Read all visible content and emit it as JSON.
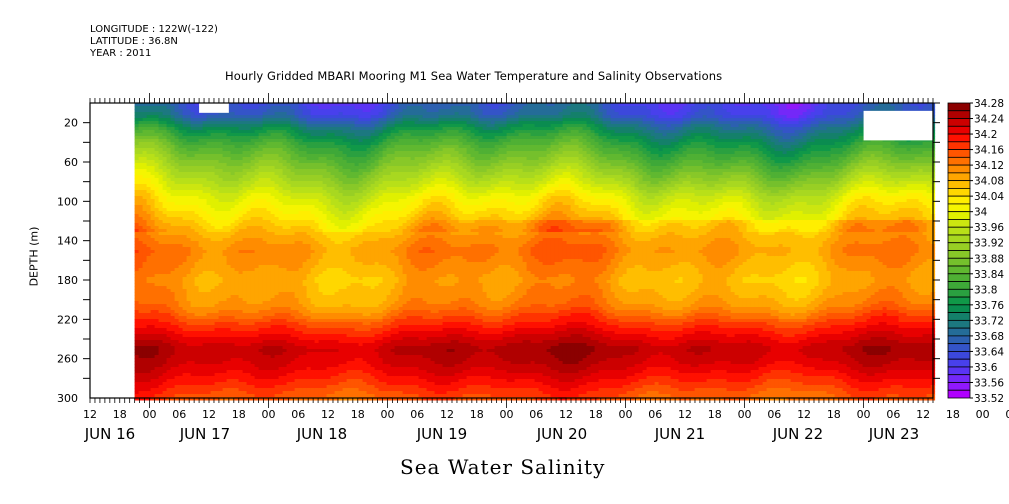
{
  "header": {
    "longitude": "LONGITUDE : 122W(-122)",
    "latitude": "LATITUDE : 36.8N",
    "year": "YEAR : 2011"
  },
  "chart_data": {
    "type": "heatmap",
    "title": "Hourly Gridded MBARI Mooring M1 Sea Water Temperature and Salinity Observations",
    "xlabel": "Sea Water Salinity",
    "ylabel": "DEPTH (m)",
    "y_range": [
      0,
      300
    ],
    "y_inverted": true,
    "y_ticks": [
      20,
      60,
      100,
      140,
      180,
      220,
      260,
      300
    ],
    "x_range_hours": [
      "JUN 16 12:00",
      "JUN 23 14:00"
    ],
    "x_hour_ticks": [
      "12",
      "18",
      "00",
      "06",
      "12",
      "18",
      "00",
      "06",
      "12",
      "18",
      "00",
      "06",
      "12",
      "18",
      "00",
      "06",
      "12",
      "18",
      "00",
      "06",
      "12",
      "18",
      "00",
      "06",
      "12",
      "18",
      "00",
      "06",
      "12",
      "18",
      "00",
      "06",
      "12"
    ],
    "x_day_labels": [
      "JUN 16",
      "JUN 17",
      "JUN 18",
      "JUN 19",
      "JUN 20",
      "JUN 21",
      "JUN 22",
      "JUN 23"
    ],
    "data_start_hour": 10,
    "colorbar": {
      "min": 33.52,
      "max": 34.28,
      "step": 0.02,
      "labels": [
        "34.28",
        "34.24",
        "34.2",
        "34.16",
        "34.12",
        "34.08",
        "34.04",
        "34",
        "33.96",
        "33.92",
        "33.88",
        "33.84",
        "33.8",
        "33.76",
        "33.72",
        "33.68",
        "33.64",
        "33.6",
        "33.56",
        "33.52"
      ],
      "colors_top_to_bottom": [
        "#8b0000",
        "#b00000",
        "#cc0000",
        "#e80000",
        "#ff1000",
        "#ff3300",
        "#ff5500",
        "#ff7000",
        "#ff8c00",
        "#ffa500",
        "#ffbe00",
        "#ffd700",
        "#ffee00",
        "#f5f500",
        "#e0f000",
        "#cce610",
        "#b8e018",
        "#a8d820",
        "#98cf24",
        "#88c828",
        "#75c02c",
        "#60b830",
        "#4fb034",
        "#3ea838",
        "#2aa040",
        "#109848",
        "#0a8c50",
        "#14806a",
        "#1c7880",
        "#246c98",
        "#2c60b0",
        "#3454c8",
        "#3c48dc",
        "#4840ec",
        "#5a34f4",
        "#7428f8",
        "#9018fc",
        "#b000ff"
      ],
      "level_profile": "salinity increases with depth: ~33.64 near surface (0-20 m), ~33.85 at 60 m, ~34.02 at 100 m, ~34.10 at 140-180 m, ~34.24 at 250 m, ~34.16 at 300 m"
    },
    "missing_regions": [
      "before JUN 16 ~21:00 (all depths)",
      "JUN 17 ~06:00-12:00 at 0-10 m",
      "JUN 23 ~00:00-14:00 at 8-38 m"
    ]
  }
}
